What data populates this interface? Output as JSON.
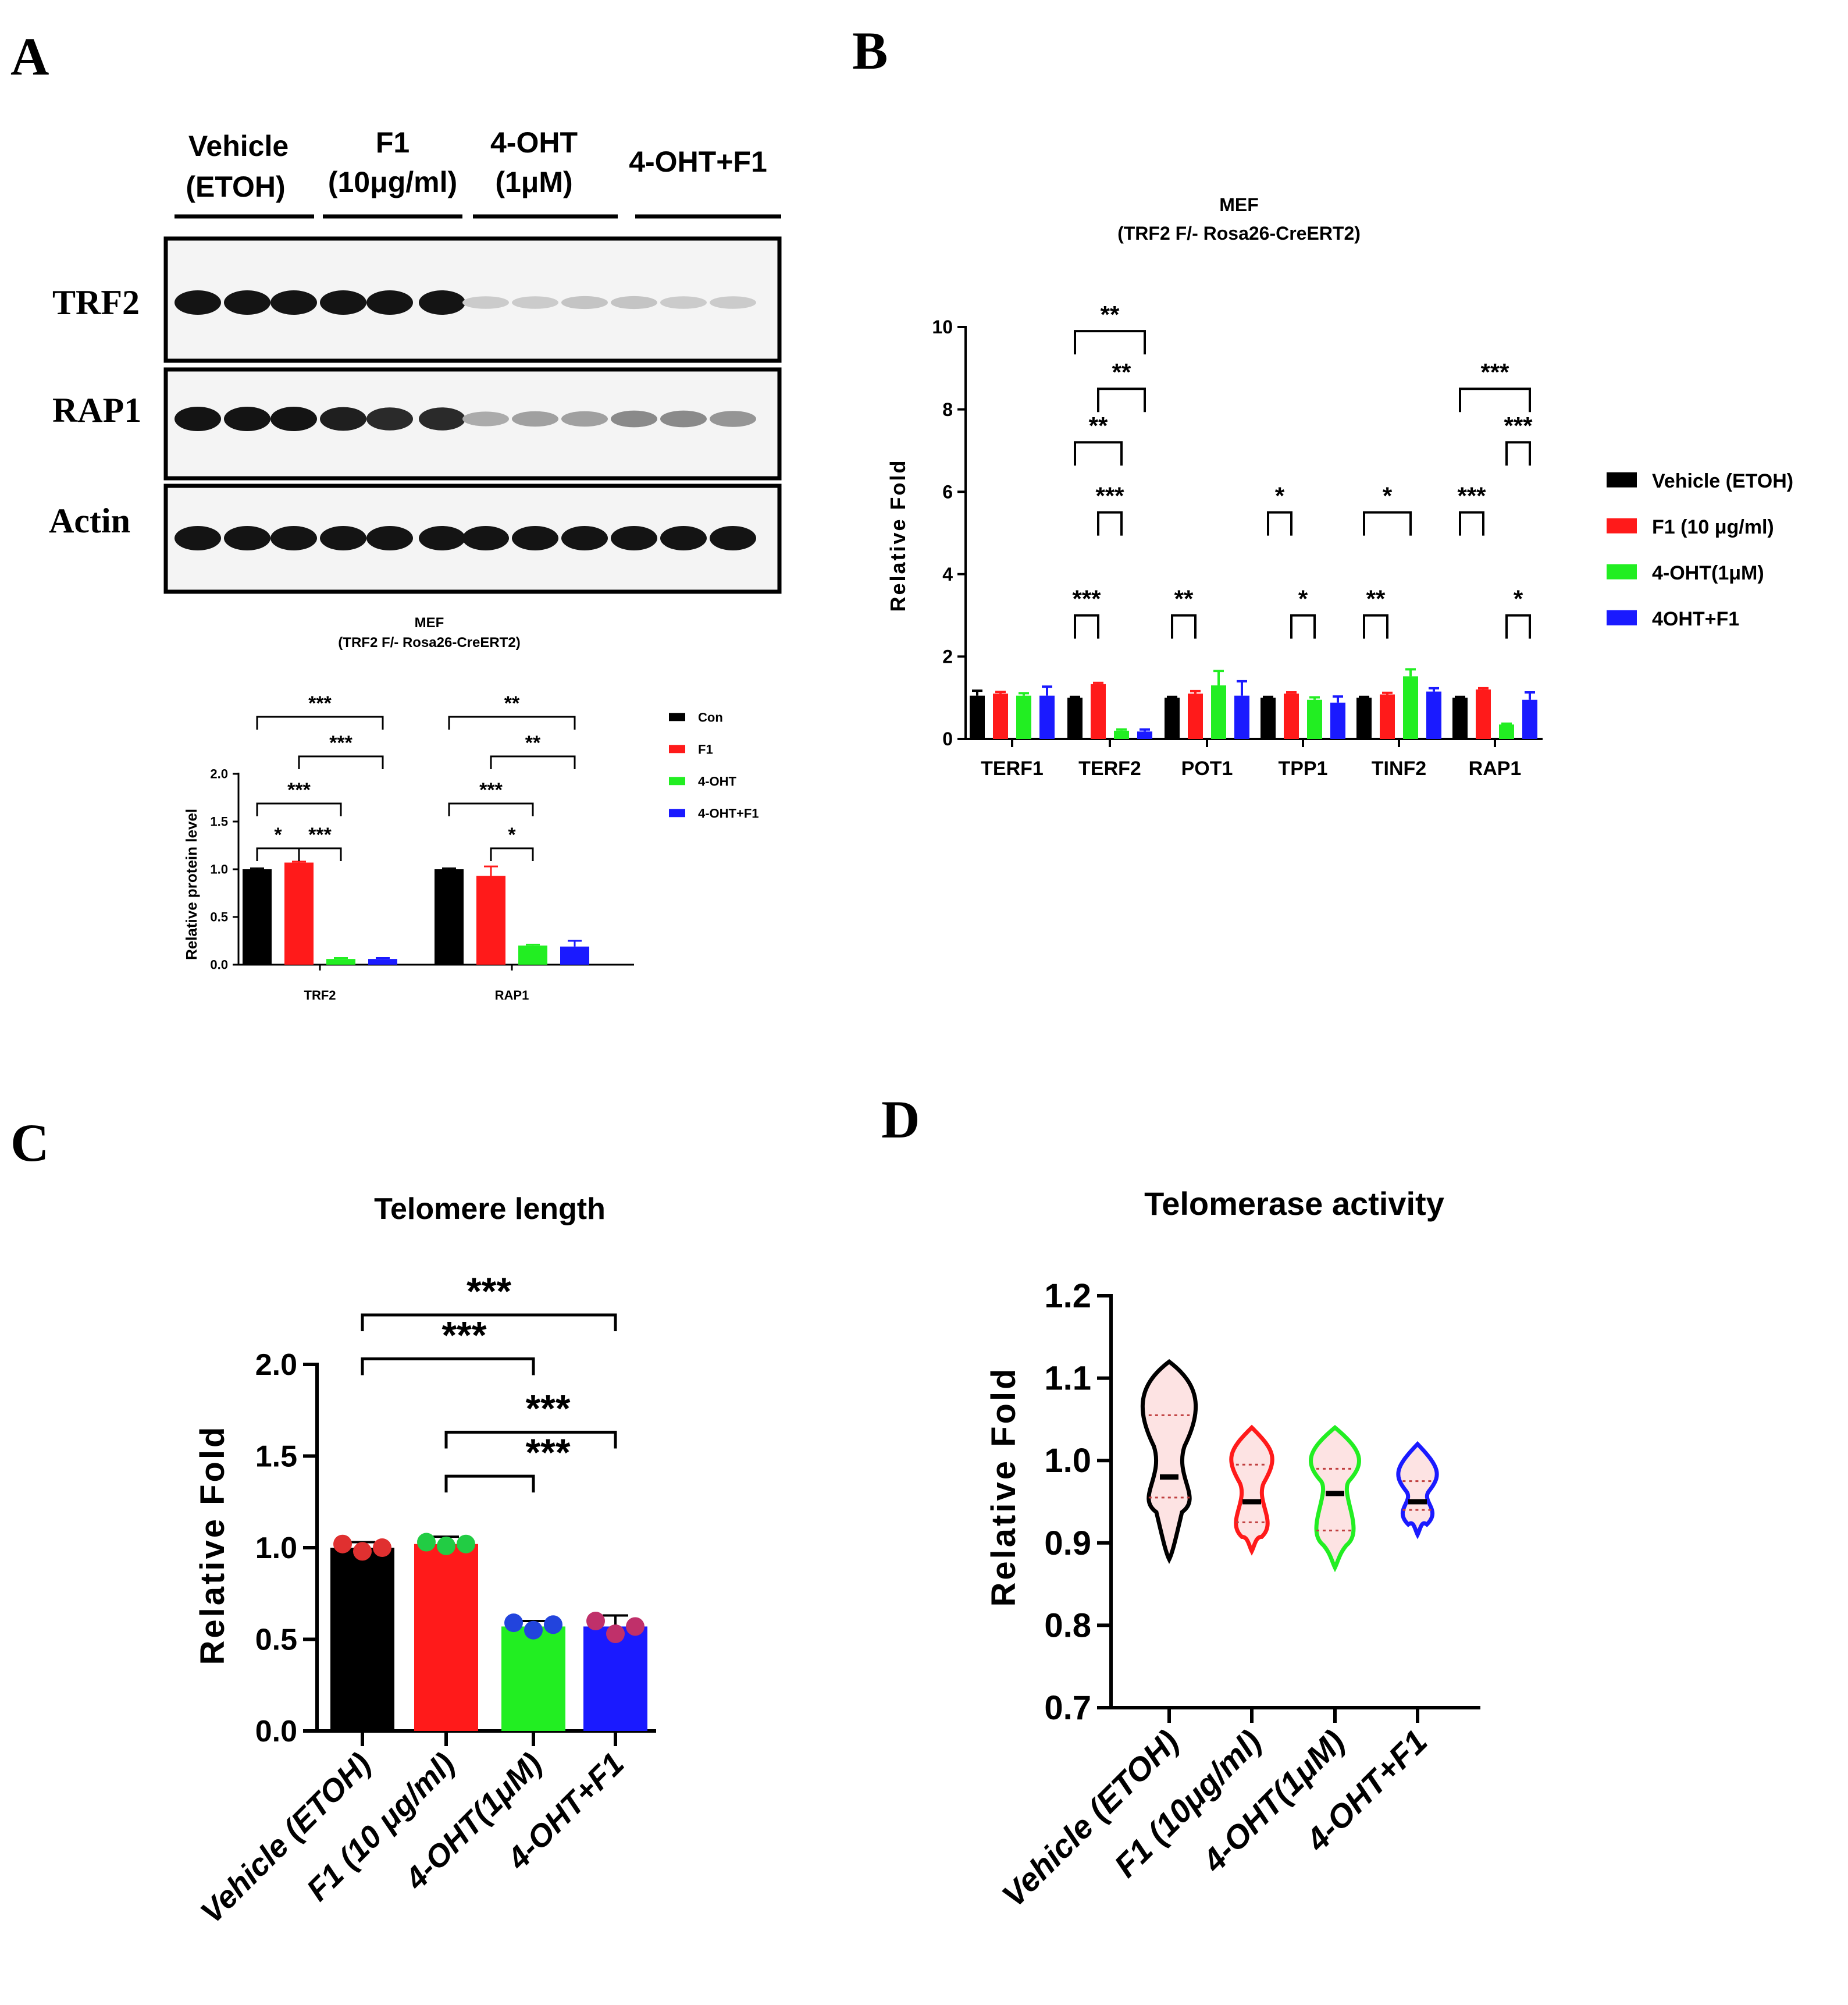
{
  "colors": {
    "vehicle": "#000000",
    "f1": "#ff1a1a",
    "ohtt": "#22ee22",
    "combo": "#1a1aff",
    "violin_fill": "#fde3e3"
  },
  "panels": {
    "A": {
      "letter": "A",
      "blot": {
        "groups": [
          "Vehicle",
          "(ETOH)",
          "F1",
          "(10μg/ml)",
          "4-OHT",
          "(1μM)",
          "4-OHT+F1"
        ],
        "rows": [
          "TRF2",
          "RAP1",
          "Actin"
        ],
        "band_intensity": {
          "TRF2": [
            1,
            1,
            1,
            1,
            1,
            1,
            0.15,
            0.15,
            0.18,
            0.18,
            0.15,
            0.15
          ],
          "RAP1": [
            1,
            1,
            1,
            0.95,
            0.9,
            0.9,
            0.3,
            0.35,
            0.35,
            0.45,
            0.45,
            0.4
          ],
          "Actin": [
            1,
            1,
            1,
            1,
            1,
            1,
            1,
            1,
            1,
            1,
            1,
            1
          ]
        }
      }
    },
    "B": {
      "letter": "B"
    },
    "C": {
      "letter": "C"
    },
    "D": {
      "letter": "D"
    }
  },
  "chart_data": [
    {
      "id": "A-quant",
      "type": "bar",
      "title": "MEF",
      "subtitle": "(TRF2 F/- Rosa26-CreERT2)",
      "ylabel": "Relative protein level",
      "ylim": [
        0,
        2.0
      ],
      "yticks": [
        "0.0",
        "0.5",
        "1.0",
        "1.5",
        "2.0"
      ],
      "categories": [
        "TRF2",
        "RAP1"
      ],
      "series": [
        {
          "name": "Con",
          "color": "#000000",
          "values": [
            1.0,
            1.0
          ],
          "errors": [
            0.01,
            0.01
          ]
        },
        {
          "name": "F1",
          "color": "#ff1a1a",
          "values": [
            1.07,
            0.93
          ],
          "errors": [
            0.01,
            0.1
          ]
        },
        {
          "name": "4-OHT",
          "color": "#22ee22",
          "values": [
            0.06,
            0.2
          ],
          "errors": [
            0.01,
            0.01
          ]
        },
        {
          "name": "4-OHT+F1",
          "color": "#1a1aff",
          "values": [
            0.06,
            0.19
          ],
          "errors": [
            0.01,
            0.06
          ]
        }
      ],
      "legend_position": "right",
      "significance": [
        {
          "group": 0,
          "from": 0,
          "to": 3,
          "label": "***",
          "level": 5
        },
        {
          "group": 0,
          "from": 1,
          "to": 3,
          "label": "***",
          "level": 4
        },
        {
          "group": 0,
          "from": 0,
          "to": 2,
          "label": "***",
          "level": 3
        },
        {
          "group": 0,
          "from": 0,
          "to": 1,
          "label": "*",
          "level": 2
        },
        {
          "group": 0,
          "from": 1,
          "to": 2,
          "label": "***",
          "level": 2
        },
        {
          "group": 1,
          "from": 0,
          "to": 3,
          "label": "**",
          "level": 5
        },
        {
          "group": 1,
          "from": 1,
          "to": 3,
          "label": "**",
          "level": 4
        },
        {
          "group": 1,
          "from": 0,
          "to": 2,
          "label": "***",
          "level": 3
        },
        {
          "group": 1,
          "from": 1,
          "to": 2,
          "label": "*",
          "level": 2
        }
      ]
    },
    {
      "id": "B",
      "type": "bar",
      "title": "MEF",
      "subtitle": "(TRF2 F/- Rosa26-CreERT2)",
      "ylabel": "Relative Fold",
      "ylim": [
        0,
        10
      ],
      "yticks": [
        "0",
        "2",
        "4",
        "6",
        "8",
        "10"
      ],
      "categories": [
        "TERF1",
        "TERF2",
        "POT1",
        "TPP1",
        "TINF2",
        "RAP1"
      ],
      "series": [
        {
          "name": "Vehicle (ETOH)",
          "color": "#000000",
          "values": [
            1.05,
            1.0,
            1.0,
            1.0,
            1.0,
            1.0
          ],
          "errors": [
            0.12,
            0.02,
            0.02,
            0.02,
            0.02,
            0.02
          ]
        },
        {
          "name": "F1 (10 μg/ml)",
          "color": "#ff1a1a",
          "values": [
            1.1,
            1.33,
            1.1,
            1.1,
            1.08,
            1.2
          ],
          "errors": [
            0.04,
            0.03,
            0.06,
            0.03,
            0.04,
            0.03
          ]
        },
        {
          "name": "4-OHT(1μM)",
          "color": "#22ee22",
          "values": [
            1.05,
            0.2,
            1.3,
            0.95,
            1.52,
            0.35
          ],
          "errors": [
            0.06,
            0.03,
            0.35,
            0.06,
            0.17,
            0.02
          ]
        },
        {
          "name": "4OHT+F1",
          "color": "#1a1aff",
          "values": [
            1.05,
            0.18,
            1.05,
            0.88,
            1.15,
            0.95
          ],
          "errors": [
            0.22,
            0.05,
            0.35,
            0.15,
            0.08,
            0.18
          ]
        }
      ],
      "legend_position": "right",
      "significance": [
        {
          "group": 1,
          "from": 0,
          "to": 3,
          "label": "**",
          "y": 9.9
        },
        {
          "group": 1,
          "from": 1,
          "to": 3,
          "label": "**",
          "y": 8.5
        },
        {
          "group": 1,
          "from": 0,
          "to": 2,
          "label": "**",
          "y": 7.2
        },
        {
          "group": 1,
          "from": 1,
          "to": 2,
          "label": "***",
          "y": 5.5
        },
        {
          "group": 1,
          "from": 0,
          "to": 1,
          "label": "***",
          "y": 3.0
        },
        {
          "group": 2,
          "from": 0,
          "to": 1,
          "label": "**",
          "y": 3.0
        },
        {
          "group": 3,
          "from": 0,
          "to": 1,
          "label": "*",
          "y": 5.5
        },
        {
          "group": 3,
          "from": 1,
          "to": 2,
          "label": "*",
          "y": 3.0
        },
        {
          "group": 4,
          "from": 0,
          "to": 2,
          "label": "*",
          "y": 5.5
        },
        {
          "group": 4,
          "from": 0,
          "to": 1,
          "label": "**",
          "y": 3.0
        },
        {
          "group": 5,
          "from": 0,
          "to": 3,
          "label": "***",
          "y": 8.5
        },
        {
          "group": 5,
          "from": 2,
          "to": 3,
          "label": "***",
          "y": 7.2
        },
        {
          "group": 5,
          "from": 0,
          "to": 1,
          "label": "***",
          "y": 5.5
        },
        {
          "group": 5,
          "from": 2,
          "to": 3,
          "label": "*",
          "y": 3.0
        }
      ]
    },
    {
      "id": "C",
      "type": "bar",
      "title": "Telomere length",
      "ylabel": "Relative Fold",
      "ylim": [
        0,
        2.0
      ],
      "yticks": [
        "0.0",
        "0.5",
        "1.0",
        "1.5",
        "2.0"
      ],
      "categories": [
        "Vehicle (ETOH)",
        "F1 (10 μg/ml)",
        "4-OHT(1μM)",
        "4-OHT+F1"
      ],
      "values": [
        1.0,
        1.02,
        0.57,
        0.57
      ],
      "errors": [
        0.03,
        0.04,
        0.03,
        0.06
      ],
      "colors": [
        "#000000",
        "#ff1a1a",
        "#22ee22",
        "#1a1aff"
      ],
      "points": [
        {
          "values": [
            1.02,
            0.98,
            1.0
          ],
          "color": "#e03030"
        },
        {
          "values": [
            1.03,
            1.01,
            1.02
          ],
          "color": "#22cc44"
        },
        {
          "values": [
            0.59,
            0.55,
            0.58
          ],
          "color": "#2244dd"
        },
        {
          "values": [
            0.6,
            0.53,
            0.57
          ],
          "color": "#c0306a"
        }
      ],
      "significance": [
        {
          "from": 0,
          "to": 3,
          "label": "***",
          "y": 2.27
        },
        {
          "from": 0,
          "to": 2,
          "label": "***",
          "y": 2.03
        },
        {
          "from": 1,
          "to": 3,
          "label": "***",
          "y": 1.63
        },
        {
          "from": 1,
          "to": 2,
          "label": "***",
          "y": 1.39
        }
      ]
    },
    {
      "id": "D",
      "type": "violin",
      "title": "Telomerase activity",
      "ylabel": "Relative Fold",
      "ylim": [
        0.7,
        1.2
      ],
      "yticks": [
        "0.7",
        "0.8",
        "0.9",
        "1.0",
        "1.1",
        "1.2"
      ],
      "categories": [
        "Vehicle (ETOH)",
        "F1 (10μg/ml)",
        "4-OHT(1μM)",
        "4-OHT+F1"
      ],
      "colors": [
        "#000000",
        "#ff1a1a",
        "#22ee22",
        "#1a1aff"
      ],
      "stats": [
        {
          "min": 0.88,
          "max": 1.12,
          "median": 0.98,
          "q1": 0.955,
          "q3": 1.055
        },
        {
          "min": 0.89,
          "max": 1.04,
          "median": 0.95,
          "q1": 0.925,
          "q3": 0.995
        },
        {
          "min": 0.87,
          "max": 1.04,
          "median": 0.96,
          "q1": 0.915,
          "q3": 0.99
        },
        {
          "min": 0.91,
          "max": 1.02,
          "median": 0.95,
          "q1": 0.94,
          "q3": 0.975
        }
      ]
    }
  ]
}
